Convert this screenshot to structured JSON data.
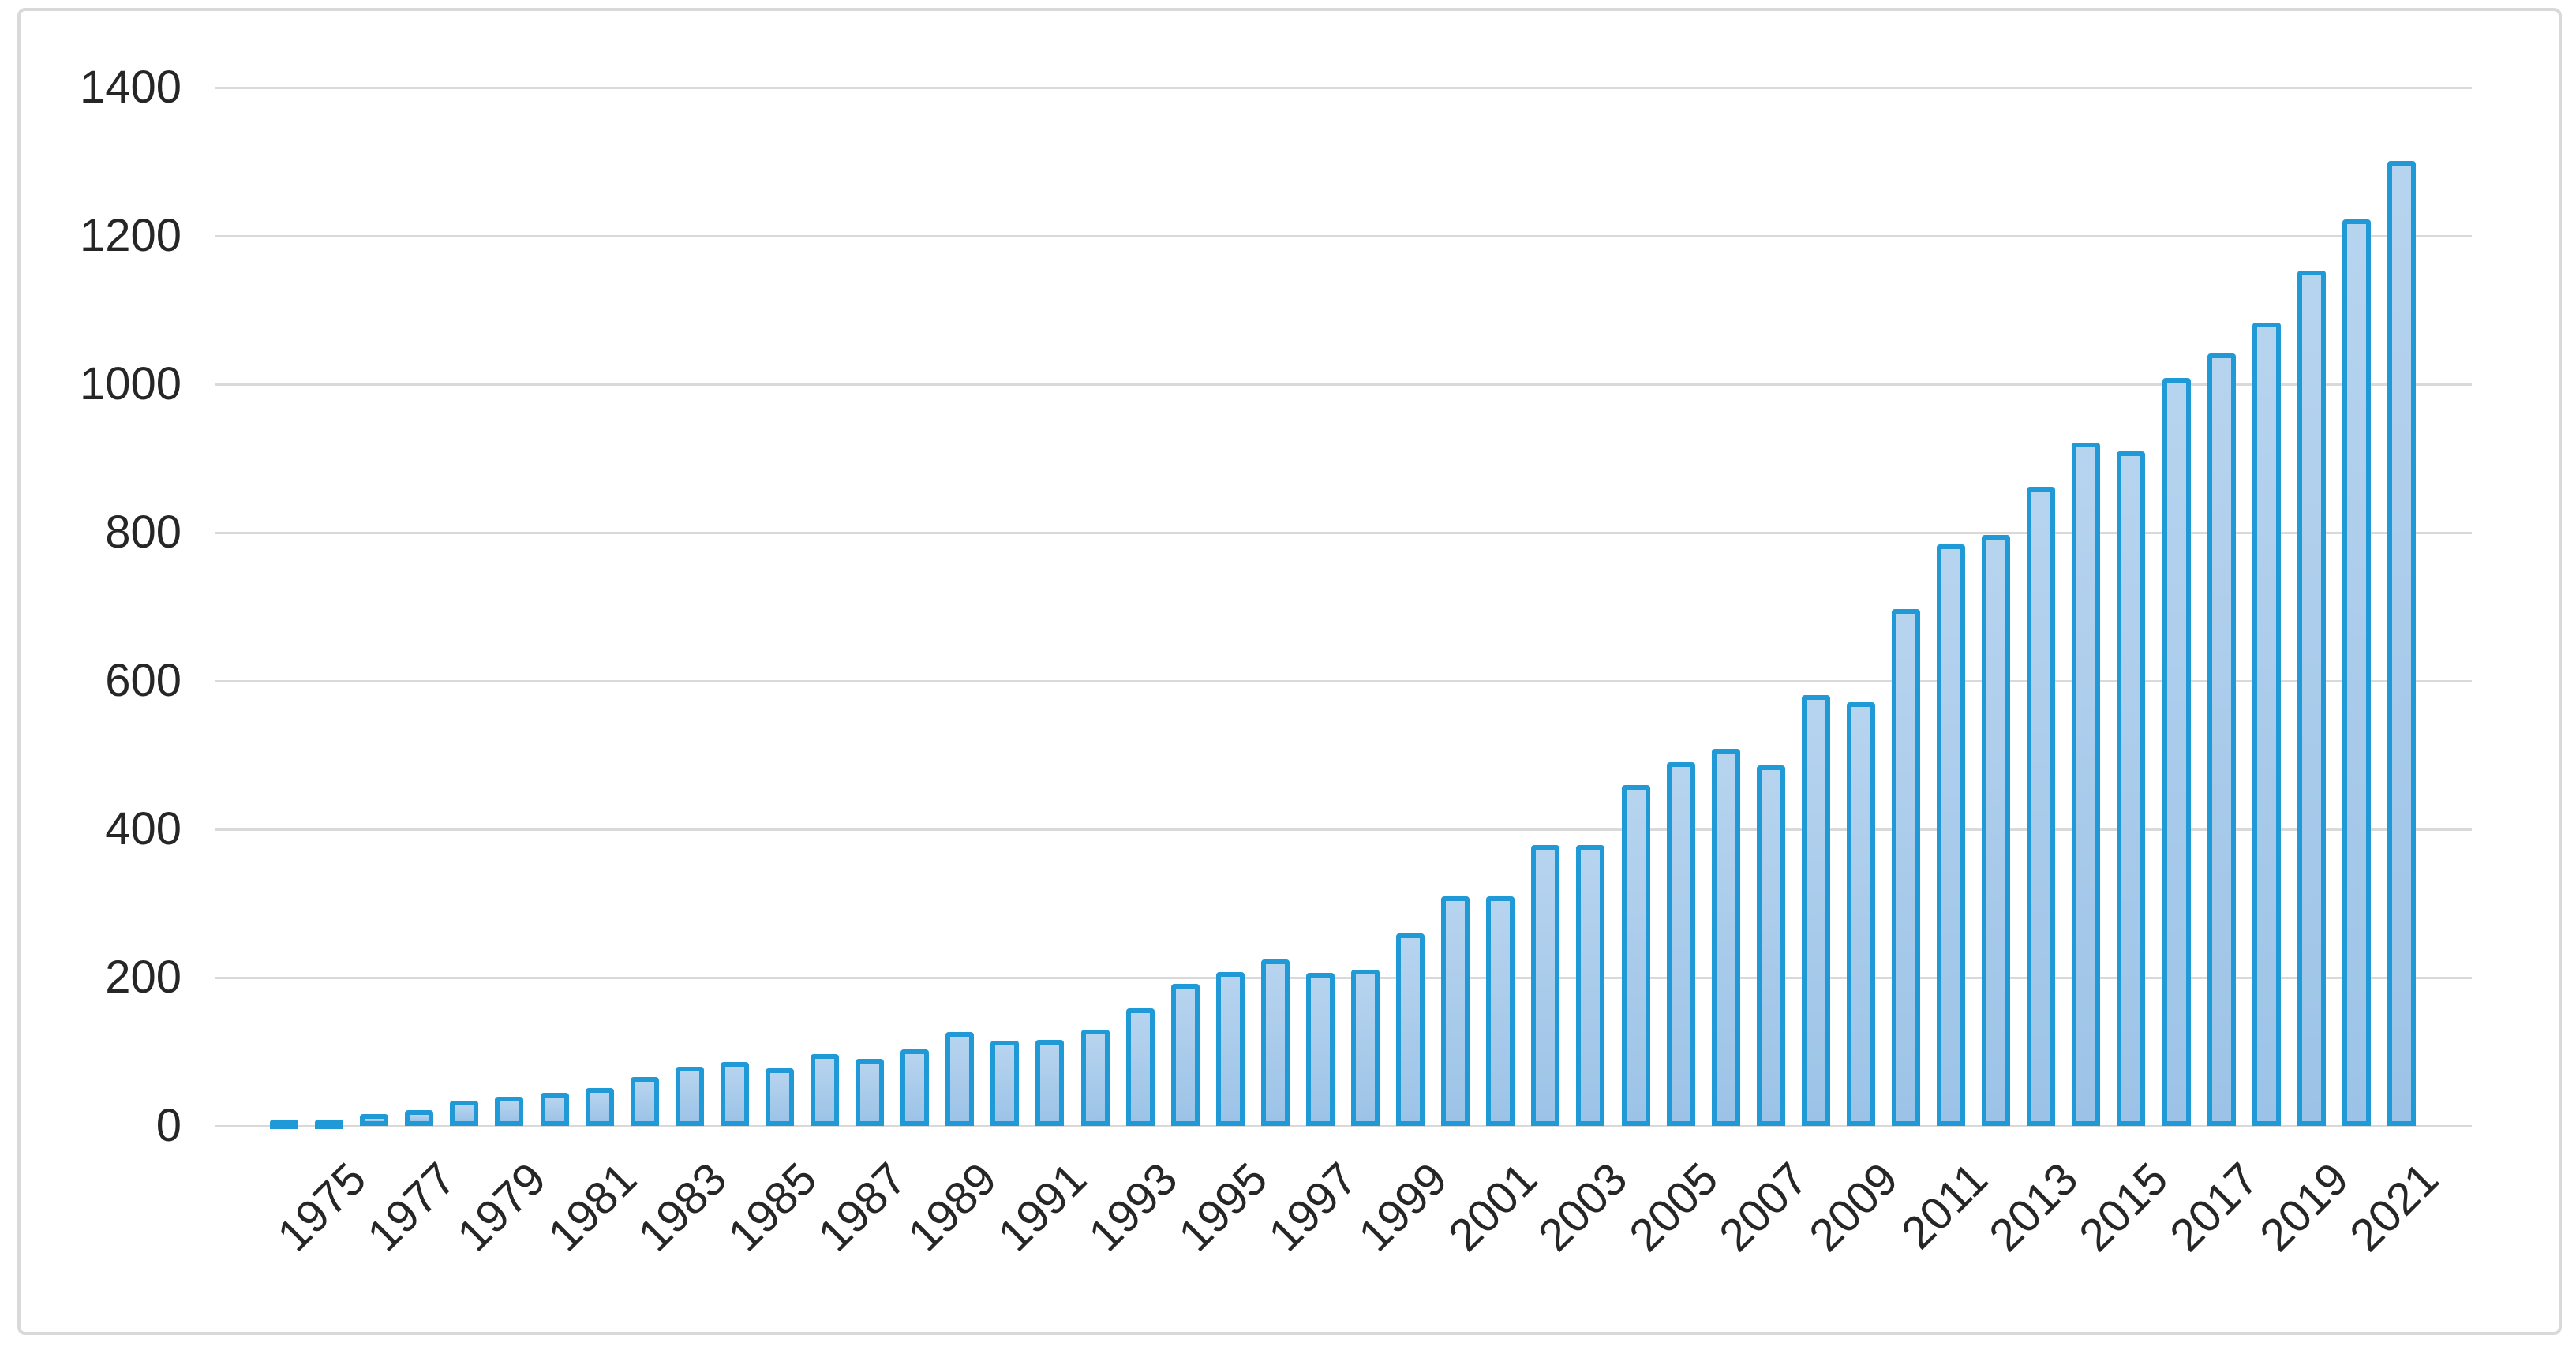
{
  "chart_data": {
    "type": "bar",
    "title": "",
    "xlabel": "",
    "ylabel": "",
    "categories": [
      1974,
      1975,
      1976,
      1977,
      1978,
      1979,
      1980,
      1981,
      1982,
      1983,
      1984,
      1985,
      1986,
      1987,
      1988,
      1989,
      1990,
      1991,
      1992,
      1993,
      1994,
      1995,
      1996,
      1997,
      1998,
      1999,
      2000,
      2001,
      2002,
      2003,
      2004,
      2005,
      2006,
      2007,
      2008,
      2009,
      2010,
      2011,
      2012,
      2013,
      2014,
      2015,
      2016,
      2017,
      2018,
      2019,
      2020,
      2021
    ],
    "values": [
      9,
      9,
      16,
      21,
      34,
      39,
      45,
      51,
      66,
      80,
      86,
      78,
      97,
      90,
      103,
      127,
      115,
      116,
      130,
      159,
      192,
      207,
      224,
      206,
      211,
      260,
      310,
      310,
      379,
      379,
      460,
      490,
      509,
      486,
      581,
      571,
      697,
      784,
      797,
      862,
      921,
      910,
      1009,
      1041,
      1083,
      1153,
      1222,
      1301
    ],
    "ylim": [
      0,
      1400
    ],
    "ytick_step": 200,
    "yticks": [
      "0",
      "200",
      "400",
      "600",
      "800",
      "1000",
      "1200",
      "1400"
    ],
    "x_tick_labels": [
      "1975",
      "1977",
      "1979",
      "1981",
      "1983",
      "1985",
      "1987",
      "1989",
      "1991",
      "1993",
      "1995",
      "1997",
      "1999",
      "2001",
      "2003",
      "2005",
      "2007",
      "2009",
      "2011",
      "2013",
      "2015",
      "2017",
      "2019",
      "2021"
    ],
    "x_label_every": 2,
    "x_label_start_index": 1,
    "grid": true,
    "legend_position": "none",
    "colors": {
      "bar_fill_top": "#b7d4ef",
      "bar_fill_bottom": "#9cc3e7",
      "bar_border": "#1f9ad6",
      "gridline": "#d9d9d9",
      "frame_border": "#d9d9d9",
      "text": "#262626",
      "background": "#ffffff"
    }
  }
}
